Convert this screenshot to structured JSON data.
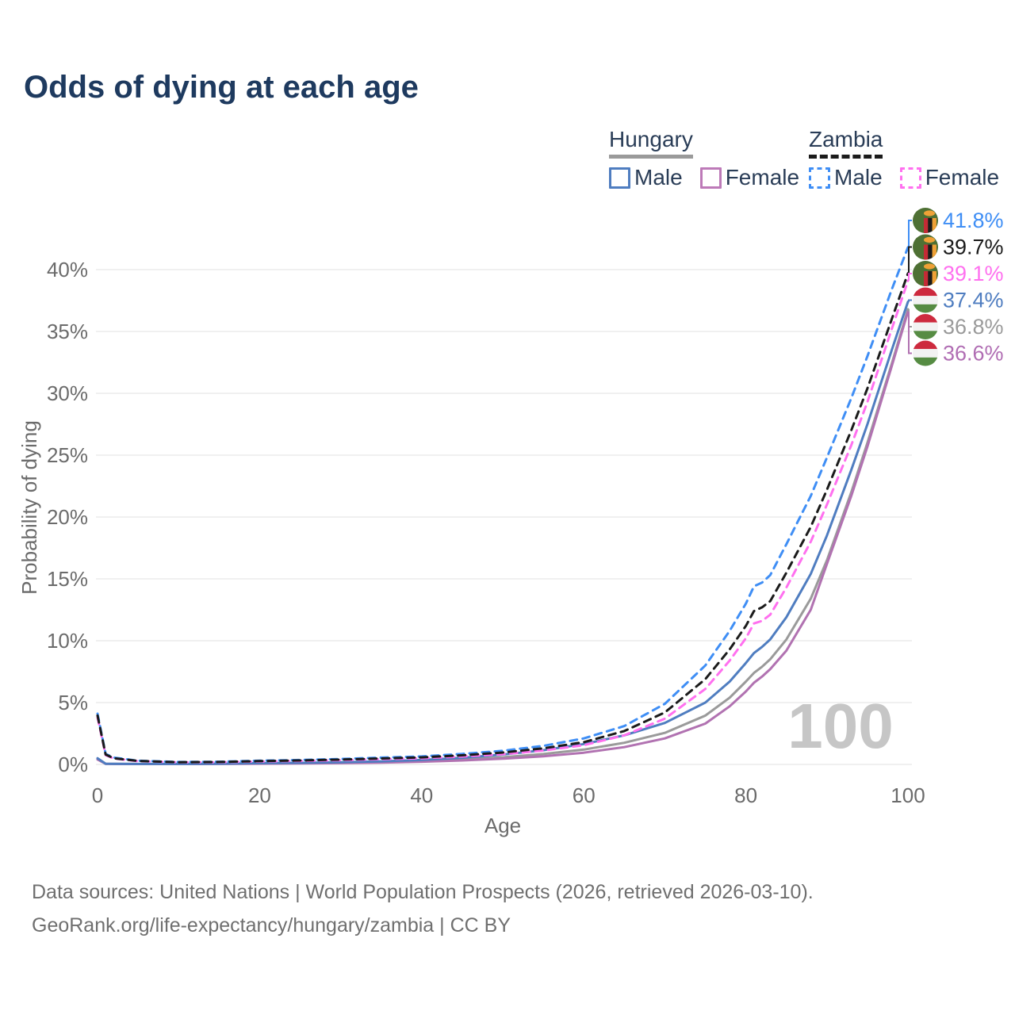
{
  "title": "Odds of dying at each age",
  "watermark": "100",
  "footer": {
    "line1": "Data sources: United Nations | World Population Prospects (2026, retrieved 2026-03-10).",
    "line2": "GeoRank.org/life-expectancy/hungary/zambia | CC BY"
  },
  "colors": {
    "title": "#1e3a5f",
    "axis_text": "#6b6b6b",
    "gridline": "#ececec",
    "watermark": "#c6c6c6",
    "legend_text": "#2a3d57"
  },
  "legend": {
    "groups": [
      {
        "country": "Hungary",
        "underline_style": "solid",
        "underline_color": "#9a9a9a",
        "items": [
          {
            "label": "Male",
            "color": "#4f7dc0",
            "dashed": false
          },
          {
            "label": "Female",
            "color": "#bd7ab8",
            "dashed": false
          }
        ]
      },
      {
        "country": "Zambia",
        "underline_style": "dashed",
        "underline_color": "#1b1b1b",
        "items": [
          {
            "label": "Male",
            "color": "#3f8ef5",
            "dashed": true
          },
          {
            "label": "Female",
            "color": "#ff70ef",
            "dashed": true
          }
        ]
      }
    ]
  },
  "flags": {
    "hungary": {
      "red": "#cd2a3e",
      "white": "#f2f2f2",
      "green": "#568c43"
    },
    "zambia": {
      "green": "#4e7034",
      "red": "#c42b35",
      "black": "#1a1a1a",
      "orange": "#efa136"
    }
  },
  "chart_data": {
    "type": "line",
    "title": "Odds of dying at each age",
    "xlabel": "Age",
    "ylabel": "Probability of dying",
    "xlim": [
      0,
      100
    ],
    "ylim": [
      0,
      43
    ],
    "grid": true,
    "legend_position": "top-right",
    "x_ticks": [
      {
        "value": 0,
        "label": "0"
      },
      {
        "value": 20,
        "label": "20"
      },
      {
        "value": 40,
        "label": "40"
      },
      {
        "value": 60,
        "label": "60"
      },
      {
        "value": 80,
        "label": "80"
      },
      {
        "value": 100,
        "label": "100"
      }
    ],
    "y_ticks": [
      {
        "value": 0,
        "label": "0%"
      },
      {
        "value": 5,
        "label": "5%"
      },
      {
        "value": 10,
        "label": "10%"
      },
      {
        "value": 15,
        "label": "15%"
      },
      {
        "value": 20,
        "label": "20%"
      },
      {
        "value": 25,
        "label": "25%"
      },
      {
        "value": 30,
        "label": "30%"
      },
      {
        "value": 35,
        "label": "35%"
      },
      {
        "value": 40,
        "label": "40%"
      }
    ],
    "x": [
      0,
      1,
      2,
      5,
      10,
      15,
      20,
      25,
      30,
      35,
      40,
      45,
      50,
      55,
      60,
      65,
      70,
      75,
      78,
      80,
      81,
      82,
      83,
      85,
      88,
      90,
      93,
      95,
      98,
      100
    ],
    "series": [
      {
        "name": "Zambia Male",
        "country": "Zambia",
        "sex": "Male",
        "color": "#3f8ef5",
        "dashed": true,
        "end_label": "41.8%",
        "label_color": "#3f8ef5",
        "flag": "zambia",
        "values": [
          4.1,
          0.85,
          0.55,
          0.3,
          0.2,
          0.22,
          0.3,
          0.36,
          0.44,
          0.55,
          0.65,
          0.85,
          1.1,
          1.5,
          2.1,
          3.1,
          4.9,
          8.0,
          10.8,
          13.0,
          14.4,
          14.7,
          15.3,
          17.8,
          21.7,
          24.8,
          29.6,
          33.0,
          38.4,
          41.8
        ]
      },
      {
        "name": "Zambia Both sexes",
        "country": "Zambia",
        "sex": "Both",
        "color": "#1b1b1b",
        "dashed": true,
        "end_label": "39.7%",
        "label_color": "#1b1b1b",
        "flag": "zambia",
        "values": [
          3.95,
          0.8,
          0.5,
          0.28,
          0.18,
          0.2,
          0.27,
          0.32,
          0.39,
          0.48,
          0.57,
          0.74,
          0.96,
          1.3,
          1.8,
          2.7,
          4.2,
          6.9,
          9.3,
          11.2,
          12.4,
          12.7,
          13.2,
          15.5,
          19.2,
          22.2,
          27.0,
          30.4,
          36.0,
          39.7
        ]
      },
      {
        "name": "Zambia Female",
        "country": "Zambia",
        "sex": "Female",
        "color": "#ff70ef",
        "dashed": true,
        "end_label": "39.1%",
        "label_color": "#ff70ef",
        "flag": "zambia",
        "values": [
          3.8,
          0.75,
          0.48,
          0.26,
          0.17,
          0.18,
          0.24,
          0.28,
          0.34,
          0.42,
          0.5,
          0.64,
          0.83,
          1.12,
          1.55,
          2.35,
          3.7,
          6.1,
          8.4,
          10.2,
          11.4,
          11.6,
          12.1,
          14.3,
          18.0,
          21.0,
          25.8,
          29.3,
          35.2,
          39.1
        ]
      },
      {
        "name": "Hungary Male",
        "country": "Hungary",
        "sex": "Male",
        "color": "#4f7dc0",
        "dashed": false,
        "end_label": "37.4%",
        "label_color": "#4f7dc0",
        "flag": "hungary",
        "values": [
          0.5,
          0.06,
          0.05,
          0.04,
          0.04,
          0.06,
          0.1,
          0.13,
          0.17,
          0.25,
          0.36,
          0.54,
          0.8,
          1.15,
          1.65,
          2.35,
          3.35,
          5.0,
          6.7,
          8.2,
          9.0,
          9.5,
          10.1,
          11.9,
          15.4,
          18.5,
          23.8,
          27.5,
          33.5,
          37.4
        ]
      },
      {
        "name": "Hungary Both sexes",
        "country": "Hungary",
        "sex": "Both",
        "color": "#9a9a9a",
        "dashed": false,
        "end_label": "36.8%",
        "label_color": "#9a9a9a",
        "flag": "hungary",
        "values": [
          0.45,
          0.05,
          0.04,
          0.035,
          0.035,
          0.05,
          0.08,
          0.1,
          0.13,
          0.19,
          0.27,
          0.4,
          0.58,
          0.84,
          1.2,
          1.75,
          2.55,
          3.95,
          5.4,
          6.7,
          7.4,
          7.9,
          8.5,
          10.1,
          13.4,
          16.5,
          22.0,
          26.0,
          32.4,
          36.8
        ]
      },
      {
        "name": "Hungary Female",
        "country": "Hungary",
        "sex": "Female",
        "color": "#b172b1",
        "dashed": false,
        "end_label": "36.6%",
        "label_color": "#b06db3",
        "flag": "hungary",
        "values": [
          0.4,
          0.05,
          0.04,
          0.03,
          0.03,
          0.04,
          0.06,
          0.08,
          0.1,
          0.15,
          0.22,
          0.32,
          0.46,
          0.66,
          0.95,
          1.4,
          2.1,
          3.3,
          4.7,
          5.9,
          6.6,
          7.1,
          7.7,
          9.2,
          12.5,
          16.2,
          21.7,
          25.7,
          32.2,
          36.6
        ]
      }
    ]
  }
}
